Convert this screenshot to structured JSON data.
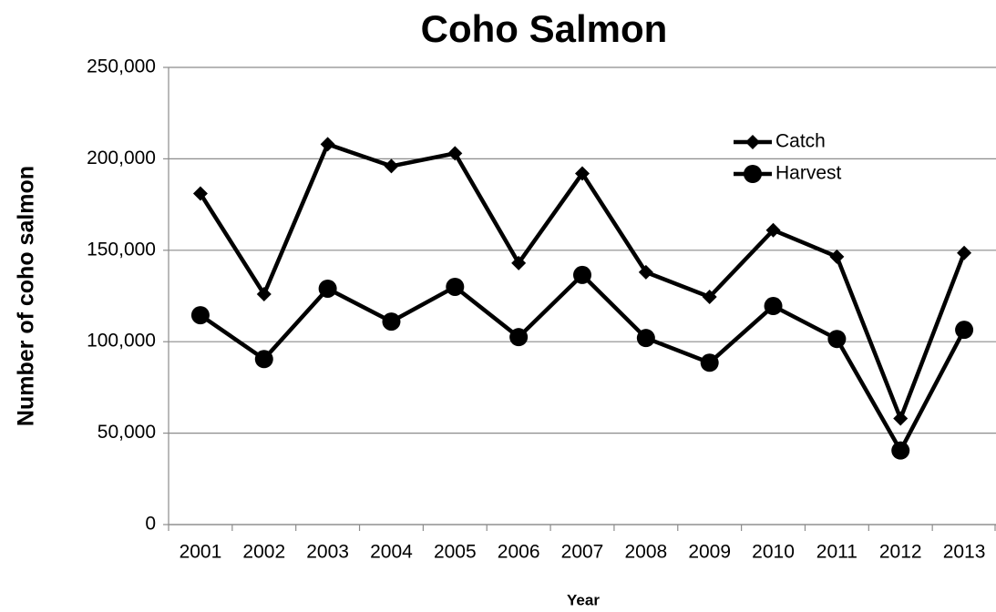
{
  "chart_data": {
    "type": "line",
    "title": "Coho Salmon",
    "x_label": "Year",
    "y_label": "Number of coho salmon",
    "categories": [
      "2001",
      "2002",
      "2003",
      "2004",
      "2005",
      "2006",
      "2007",
      "2008",
      "2009",
      "2010",
      "2011",
      "2012",
      "2013"
    ],
    "series": [
      {
        "name": "Catch",
        "color": "#000000",
        "marker": "diamond",
        "values": [
          181000,
          126000,
          208000,
          196000,
          203000,
          143000,
          192000,
          138000,
          124500,
          161000,
          146500,
          58000,
          148500
        ]
      },
      {
        "name": "Harvest",
        "color": "#000000",
        "marker": "circle",
        "values": [
          114500,
          90500,
          129000,
          111000,
          130000,
          102500,
          136500,
          102000,
          88500,
          119500,
          101500,
          40500,
          106500
        ]
      }
    ],
    "ylim": [
      0,
      250000
    ],
    "yticks": [
      0,
      {
        "value": 50000,
        "label": "50,000"
      },
      {
        "value": 100000,
        "label": "100,000"
      },
      {
        "value": 150000,
        "label": "150,000"
      },
      {
        "value": 200000,
        "label": "200,000"
      },
      {
        "value": 250000,
        "label": "250,000"
      }
    ],
    "grid": true,
    "legend": "upper right"
  }
}
